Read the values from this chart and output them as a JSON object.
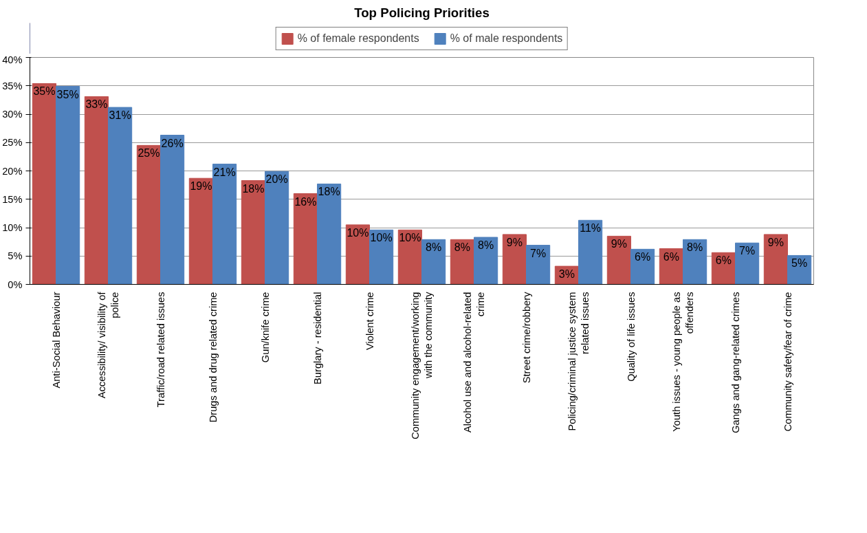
{
  "chart_data": {
    "type": "bar",
    "title": "Top Policing Priorities",
    "categories": [
      "Anti-Social Behaviour",
      "Accessibility/ visibility of police",
      "Traffic/road related issues",
      "Drugs and drug related crime",
      "Gun/knife crime",
      "Burglary - residential",
      "Violent crime",
      "Community engagement/working with the community",
      "Alcohol use and alcohol-related crime",
      "Street crime/robbery",
      "Policing/criminal justice system related issues",
      "Quality of life issues",
      "Youth issues - young people as offenders",
      "Gangs and gang-related crimes",
      "Community safety/fear of crime"
    ],
    "series": [
      {
        "name": "% of female respondents",
        "color": "#c0504d",
        "values": [
          35.4,
          33.1,
          24.5,
          18.7,
          18.3,
          16.0,
          10.5,
          9.6,
          7.9,
          8.8,
          3.2,
          8.5,
          6.3,
          5.6,
          8.8
        ],
        "value_labels": [
          "35%",
          "33%",
          "25%",
          "19%",
          "18%",
          "16%",
          "10%",
          "10%",
          "8%",
          "9%",
          "3%",
          "9%",
          "6%",
          "6%",
          "9%"
        ]
      },
      {
        "name": "% of male respondents",
        "color": "#4f81bd",
        "values": [
          34.9,
          31.2,
          26.3,
          21.2,
          19.9,
          17.7,
          9.6,
          7.9,
          8.3,
          6.9,
          11.3,
          6.2,
          7.9,
          7.3,
          5.1
        ],
        "value_labels": [
          "35%",
          "31%",
          "26%",
          "21%",
          "20%",
          "18%",
          "10%",
          "8%",
          "8%",
          "7%",
          "11%",
          "6%",
          "8%",
          "7%",
          "5%"
        ]
      }
    ],
    "ylim": [
      0,
      40
    ],
    "yticks": [
      {
        "value": 0,
        "label": "0%"
      },
      {
        "value": 5,
        "label": "5%"
      },
      {
        "value": 10,
        "label": "10%"
      },
      {
        "value": 15,
        "label": "15%"
      },
      {
        "value": 20,
        "label": "20%"
      },
      {
        "value": 25,
        "label": "25%"
      },
      {
        "value": 30,
        "label": "30%"
      },
      {
        "value": 35,
        "label": "35%"
      },
      {
        "value": 40,
        "label": "40%"
      }
    ],
    "grid": "y",
    "legend": "top"
  }
}
